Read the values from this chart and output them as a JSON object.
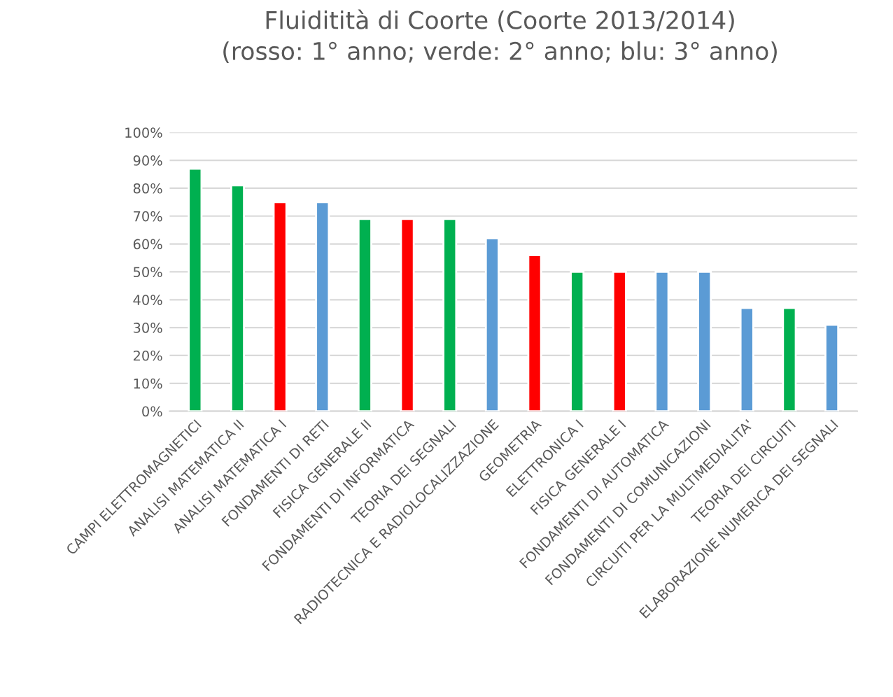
{
  "chart_data": {
    "type": "bar",
    "title": "Fluiditità di Coorte (Coorte 2013/2014)\n(rosso: 1° anno; verde: 2° anno; blu: 3° anno)",
    "categories": [
      "CAMPI ELETTROMAGNETICI",
      "ANALISI MATEMATICA II",
      "ANALISI MATEMATICA I",
      "FONDAMENTI DI RETI",
      "FISICA GENERALE II",
      "FONDAMENTI DI INFORMATICA",
      "TEORIA DEI SEGNALI",
      "RADIOTECNICA E RADIOLOCALIZZAZIONE",
      "GEOMETRIA",
      "ELETTRONICA I",
      "FISICA GENERALE I",
      "FONDAMENTI DI AUTOMATICA",
      "FONDAMENTI DI COMUNICAZIONI",
      "CIRCUITI PER LA MULTIMEDIALITA'",
      "TEORIA DEI CIRCUITI",
      "ELABORAZIONE NUMERICA DEI SEGNALI"
    ],
    "values": [
      87,
      81,
      75,
      75,
      69,
      69,
      69,
      62,
      56,
      50,
      50,
      50,
      50,
      37,
      37,
      31
    ],
    "colors": [
      "#00b050",
      "#00b050",
      "#ff0000",
      "#5b9bd5",
      "#00b050",
      "#ff0000",
      "#00b050",
      "#5b9bd5",
      "#ff0000",
      "#00b050",
      "#ff0000",
      "#5b9bd5",
      "#5b9bd5",
      "#5b9bd5",
      "#00b050",
      "#5b9bd5"
    ],
    "ylim": [
      0,
      100
    ],
    "yticks": [
      {
        "value": 0,
        "label": "0%"
      },
      {
        "value": 10,
        "label": "10%"
      },
      {
        "value": 20,
        "label": "20%"
      },
      {
        "value": 30,
        "label": "30%"
      },
      {
        "value": 40,
        "label": "40%"
      },
      {
        "value": 50,
        "label": "50%"
      },
      {
        "value": 60,
        "label": "60%"
      },
      {
        "value": 70,
        "label": "70%"
      },
      {
        "value": 80,
        "label": "80%"
      },
      {
        "value": 90,
        "label": "90%"
      },
      {
        "value": 100,
        "label": "100%"
      }
    ],
    "grid": "y"
  }
}
